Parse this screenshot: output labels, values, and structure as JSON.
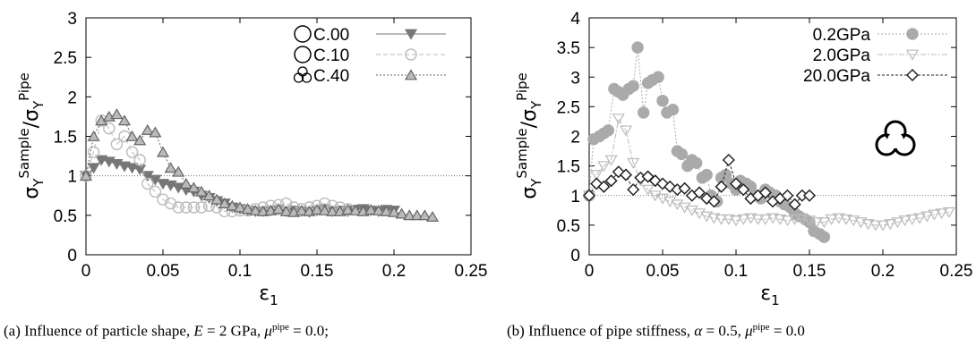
{
  "chart_data": [
    {
      "type": "scatter",
      "ylabel_main": "σ",
      "ylabel_sub": "Y",
      "ylabel_sup1": "Sample",
      "ylabel_sep": "/σ",
      "ylabel_sup2": "Pipe",
      "xlabel_main": "ε",
      "xlabel_sub": "1",
      "xlim": [
        0,
        0.25
      ],
      "ylim": [
        0,
        3
      ],
      "xticks": [
        "0",
        "0.05",
        "0.1",
        "0.15",
        "0.2",
        "0.25"
      ],
      "xtick_values": [
        0,
        0.05,
        0.1,
        0.15,
        0.2,
        0.25
      ],
      "yticks": [
        "0",
        "0.5",
        "1",
        "1.5",
        "2",
        "2.5",
        "3"
      ],
      "ytick_values": [
        0,
        0.5,
        1,
        1.5,
        2,
        2.5,
        3
      ],
      "reference_line": 1,
      "legend_placement": "top-right",
      "legend_icons": [
        "circle-icon",
        "circle-icon",
        "trefoil-icon"
      ],
      "series": [
        {
          "name": "C.00",
          "marker": "triangle-down",
          "color": "#777777",
          "fill": "#777777",
          "dash": "none",
          "x": [
            0.0,
            0.005,
            0.01,
            0.015,
            0.02,
            0.025,
            0.03,
            0.035,
            0.04,
            0.045,
            0.05,
            0.055,
            0.06,
            0.065,
            0.07,
            0.075,
            0.08,
            0.085,
            0.09,
            0.095,
            0.1,
            0.105,
            0.11,
            0.115,
            0.12,
            0.125,
            0.13,
            0.135,
            0.14,
            0.145,
            0.15,
            0.155,
            0.16,
            0.165,
            0.17,
            0.175,
            0.18,
            0.185,
            0.19,
            0.195,
            0.2
          ],
          "y": [
            1.0,
            1.1,
            1.2,
            1.18,
            1.15,
            1.12,
            1.1,
            1.08,
            1.0,
            0.95,
            0.9,
            0.88,
            0.85,
            0.82,
            0.8,
            0.75,
            0.72,
            0.68,
            0.65,
            0.6,
            0.58,
            0.56,
            0.55,
            0.55,
            0.56,
            0.57,
            0.55,
            0.56,
            0.55,
            0.54,
            0.56,
            0.58,
            0.55,
            0.56,
            0.55,
            0.57,
            0.58,
            0.56,
            0.55,
            0.57,
            0.56
          ]
        },
        {
          "name": "C.10",
          "marker": "circle",
          "color": "#bbbbbb",
          "fill": "none",
          "dash": "5,3",
          "x": [
            0.0,
            0.005,
            0.01,
            0.015,
            0.02,
            0.025,
            0.03,
            0.035,
            0.04,
            0.045,
            0.05,
            0.055,
            0.06,
            0.065,
            0.07,
            0.075,
            0.08,
            0.085,
            0.09,
            0.095,
            0.1,
            0.105,
            0.11,
            0.115,
            0.12,
            0.125,
            0.13,
            0.135,
            0.14,
            0.145,
            0.15,
            0.155,
            0.16,
            0.165,
            0.17
          ],
          "y": [
            1.0,
            1.3,
            1.7,
            1.6,
            1.4,
            1.5,
            1.3,
            1.2,
            0.9,
            0.8,
            0.7,
            0.65,
            0.6,
            0.6,
            0.6,
            0.6,
            0.62,
            0.6,
            0.55,
            0.55,
            0.56,
            0.56,
            0.58,
            0.6,
            0.62,
            0.63,
            0.65,
            0.6,
            0.58,
            0.6,
            0.62,
            0.65,
            0.62,
            0.6,
            0.58
          ]
        },
        {
          "name": "C.40",
          "marker": "triangle-up",
          "color": "#666666",
          "fill": "#bbbbbb",
          "dash": "2,2",
          "x": [
            0.0,
            0.005,
            0.01,
            0.015,
            0.02,
            0.025,
            0.03,
            0.035,
            0.04,
            0.045,
            0.05,
            0.055,
            0.06,
            0.065,
            0.07,
            0.075,
            0.08,
            0.085,
            0.09,
            0.095,
            0.1,
            0.105,
            0.11,
            0.115,
            0.12,
            0.125,
            0.13,
            0.135,
            0.14,
            0.145,
            0.15,
            0.155,
            0.16,
            0.165,
            0.17,
            0.175,
            0.18,
            0.185,
            0.19,
            0.195,
            0.2,
            0.205,
            0.21,
            0.215,
            0.22,
            0.225
          ],
          "y": [
            1.0,
            1.5,
            1.7,
            1.75,
            1.78,
            1.7,
            1.5,
            1.45,
            1.58,
            1.55,
            1.3,
            1.1,
            1.05,
            0.9,
            0.85,
            0.8,
            0.75,
            0.7,
            0.65,
            0.62,
            0.6,
            0.58,
            0.56,
            0.55,
            0.56,
            0.58,
            0.55,
            0.54,
            0.56,
            0.55,
            0.57,
            0.56,
            0.55,
            0.55,
            0.57,
            0.56,
            0.55,
            0.57,
            0.56,
            0.55,
            0.54,
            0.52,
            0.5,
            0.5,
            0.5,
            0.48
          ]
        }
      ]
    },
    {
      "type": "scatter",
      "ylabel_main": "σ",
      "ylabel_sub": "Y",
      "ylabel_sup1": "Sample",
      "ylabel_sep": "/σ",
      "ylabel_sup2": "Pipe",
      "xlabel_main": "ε",
      "xlabel_sub": "1",
      "xlim": [
        0,
        0.25
      ],
      "ylim": [
        0,
        4
      ],
      "xticks": [
        "0",
        "0.05",
        "0.1",
        "0.15",
        "0.2",
        "0.25"
      ],
      "xtick_values": [
        0,
        0.05,
        0.1,
        0.15,
        0.2,
        0.25
      ],
      "yticks": [
        "0",
        "0.5",
        "1",
        "1.5",
        "2",
        "2.5",
        "3",
        "3.5",
        "4"
      ],
      "ytick_values": [
        0,
        0.5,
        1,
        1.5,
        2,
        2.5,
        3,
        3.5,
        4
      ],
      "reference_line": 1,
      "legend_placement": "top-right",
      "inset_icon": "trefoil-icon",
      "series": [
        {
          "name": "0.2GPa",
          "marker": "circle-filled",
          "color": "#aaaaaa",
          "fill": "#aaaaaa",
          "dash": "2,2",
          "x": [
            0.0,
            0.003,
            0.007,
            0.01,
            0.013,
            0.017,
            0.02,
            0.023,
            0.027,
            0.03,
            0.033,
            0.037,
            0.04,
            0.043,
            0.047,
            0.05,
            0.053,
            0.057,
            0.06,
            0.063,
            0.067,
            0.07,
            0.073,
            0.077,
            0.08,
            0.083,
            0.087,
            0.09,
            0.093,
            0.097,
            0.1,
            0.103,
            0.107,
            0.11,
            0.113,
            0.117,
            0.12,
            0.123,
            0.127,
            0.13,
            0.133,
            0.137,
            0.14,
            0.143,
            0.147,
            0.15,
            0.153,
            0.157,
            0.16
          ],
          "y": [
            1.0,
            1.95,
            2.0,
            2.05,
            2.1,
            2.8,
            2.75,
            2.7,
            2.8,
            2.85,
            3.5,
            2.4,
            2.9,
            2.95,
            3.0,
            2.6,
            2.4,
            2.45,
            1.75,
            1.7,
            1.5,
            1.6,
            1.55,
            1.3,
            1.35,
            1.0,
            0.9,
            1.3,
            1.35,
            1.2,
            1.1,
            1.25,
            1.2,
            1.15,
            1.0,
            0.95,
            1.1,
            1.05,
            1.0,
            0.9,
            0.85,
            0.8,
            0.7,
            0.65,
            0.6,
            0.55,
            0.4,
            0.35,
            0.3
          ]
        },
        {
          "name": "2.0GPa",
          "marker": "triangle-down-open",
          "color": "#bbbbbb",
          "fill": "none",
          "dash": "6,2,2,2",
          "x": [
            0.0,
            0.005,
            0.01,
            0.015,
            0.02,
            0.025,
            0.03,
            0.035,
            0.04,
            0.045,
            0.05,
            0.055,
            0.06,
            0.065,
            0.07,
            0.075,
            0.08,
            0.085,
            0.09,
            0.095,
            0.1,
            0.105,
            0.11,
            0.115,
            0.12,
            0.125,
            0.13,
            0.135,
            0.14,
            0.145,
            0.15,
            0.155,
            0.16,
            0.165,
            0.17,
            0.175,
            0.18,
            0.185,
            0.19,
            0.195,
            0.2,
            0.205,
            0.21,
            0.215,
            0.22,
            0.225,
            0.23,
            0.235,
            0.24,
            0.245
          ],
          "y": [
            1.0,
            1.35,
            1.5,
            1.6,
            2.3,
            2.1,
            1.55,
            1.25,
            1.1,
            1.0,
            0.95,
            0.9,
            0.85,
            0.8,
            0.75,
            0.7,
            0.65,
            0.62,
            0.6,
            0.6,
            0.58,
            0.6,
            0.62,
            0.6,
            0.6,
            0.62,
            0.6,
            0.58,
            0.6,
            0.6,
            0.58,
            0.55,
            0.55,
            0.6,
            0.62,
            0.6,
            0.58,
            0.55,
            0.52,
            0.5,
            0.5,
            0.52,
            0.55,
            0.58,
            0.6,
            0.62,
            0.65,
            0.68,
            0.7,
            0.72
          ]
        },
        {
          "name": "20.0GPa",
          "marker": "diamond-open",
          "color": "#222222",
          "fill": "#ffffff",
          "dash": "3,2",
          "x": [
            0.0,
            0.005,
            0.01,
            0.015,
            0.02,
            0.025,
            0.03,
            0.035,
            0.04,
            0.045,
            0.05,
            0.055,
            0.06,
            0.065,
            0.07,
            0.075,
            0.08,
            0.085,
            0.09,
            0.095,
            0.1,
            0.105,
            0.11,
            0.115,
            0.12,
            0.125,
            0.13,
            0.135,
            0.14,
            0.145,
            0.15
          ],
          "y": [
            1.0,
            1.2,
            1.15,
            1.25,
            1.4,
            1.35,
            1.1,
            1.3,
            1.32,
            1.25,
            1.2,
            1.15,
            1.1,
            1.12,
            1.0,
            1.05,
            0.95,
            0.9,
            1.15,
            1.6,
            1.2,
            1.1,
            0.95,
            1.0,
            1.05,
            0.9,
            0.95,
            1.0,
            0.85,
            1.0,
            1.0
          ]
        }
      ]
    }
  ],
  "captions": {
    "a": {
      "prefix": "(a) Influence of particle shape, ",
      "var": "E",
      "mid": " = 2 GPa, ",
      "mu": "μ",
      "sup": "pipe",
      "suffix": " = 0.0;"
    },
    "b": {
      "prefix": "(b) Influence of pipe stiffness, ",
      "var": "α",
      "mid": " = 0.5, ",
      "mu": "μ",
      "sup": "pipe",
      "suffix": " = 0.0"
    }
  }
}
